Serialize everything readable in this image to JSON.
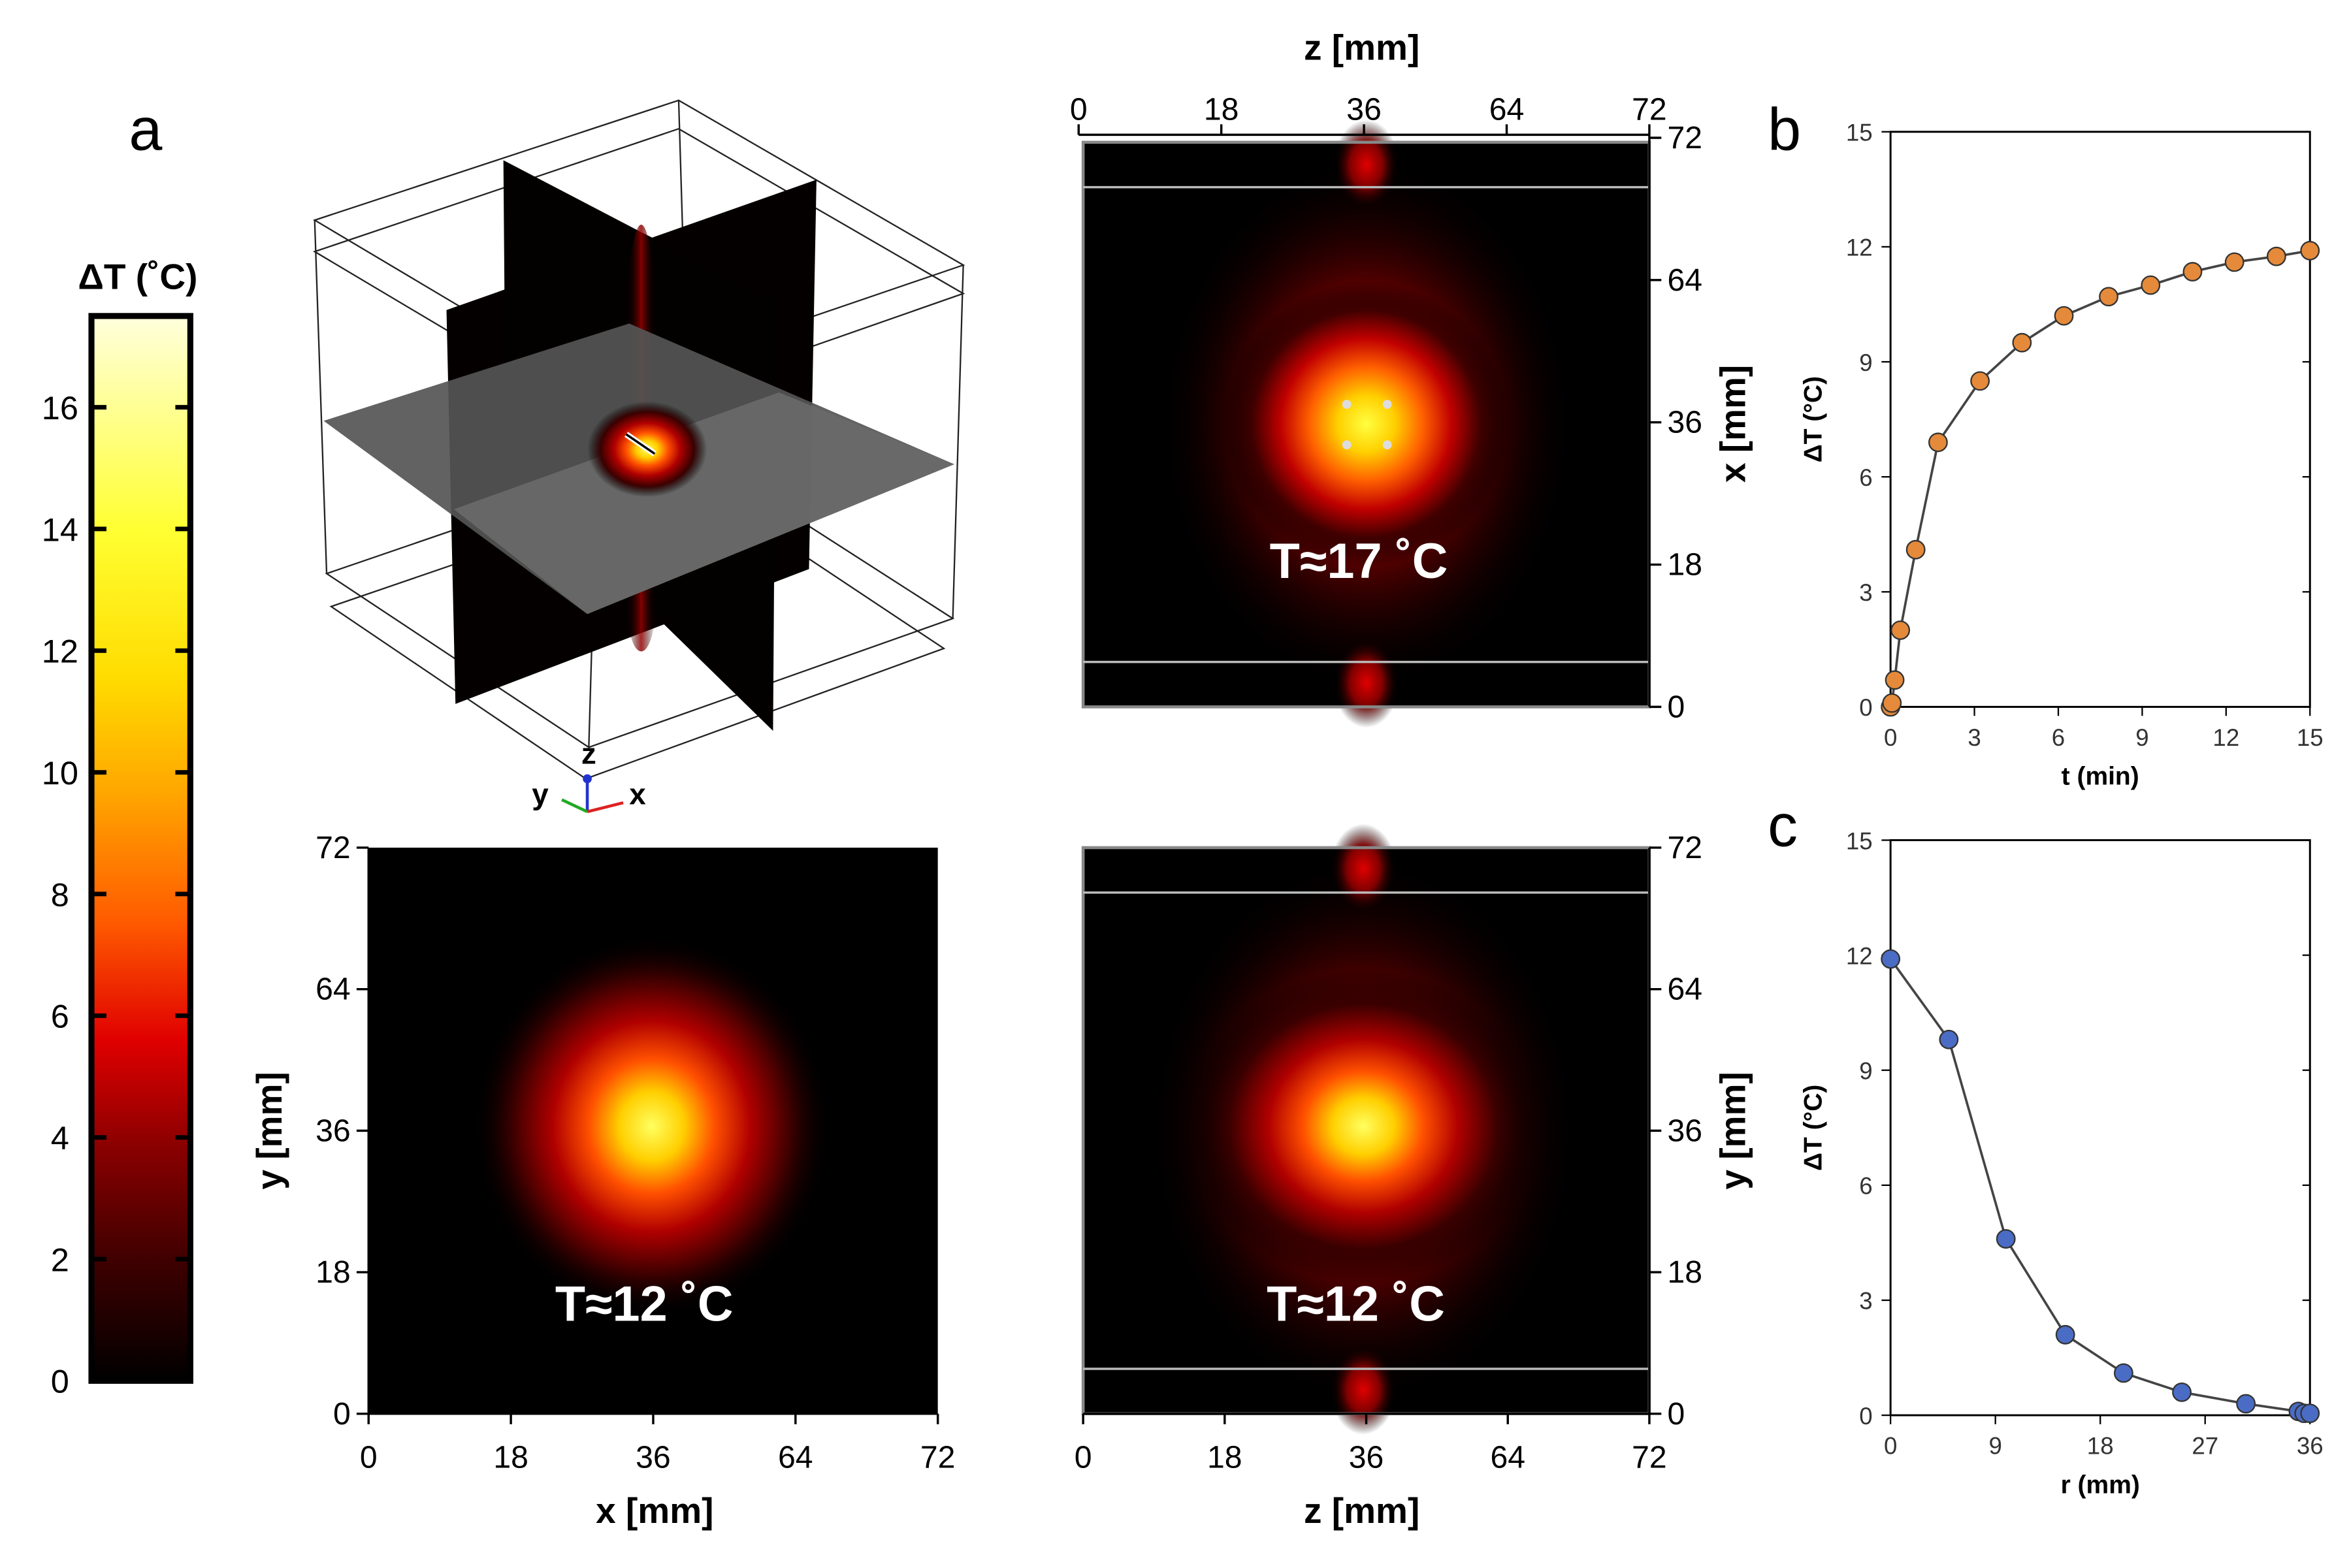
{
  "figure": {
    "panel_labels": {
      "a": "a",
      "b": "b",
      "c": "c"
    },
    "colorbar": {
      "title": "ΔT (˚C)",
      "ticks": [
        "0",
        "2",
        "4",
        "6",
        "8",
        "10",
        "12",
        "14",
        "16"
      ],
      "range": [
        0,
        17.5
      ],
      "colors": [
        "#000000",
        "#3d0000",
        "#8a0000",
        "#e00000",
        "#ff5a00",
        "#ffa500",
        "#ffdc00",
        "#ffff33",
        "#ffffdd"
      ]
    },
    "axes_3d": {
      "z": "z",
      "y": "y",
      "x": "x"
    },
    "heatmaps": {
      "top_right": {
        "xlabel": "z [mm]",
        "ylabel": "x [mm]",
        "xticks": [
          "0",
          "18",
          "36",
          "64",
          "72"
        ],
        "yticks": [
          "0",
          "18",
          "36",
          "64",
          "72"
        ],
        "annotation": "T≈17 ˚C"
      },
      "bottom_left": {
        "xlabel": "x [mm]",
        "ylabel": "y [mm]",
        "xticks": [
          "0",
          "18",
          "36",
          "64",
          "72"
        ],
        "yticks": [
          "0",
          "18",
          "36",
          "64",
          "72"
        ],
        "annotation": "T≈12 ˚C"
      },
      "bottom_right": {
        "xlabel": "z [mm]",
        "ylabel": "y [mm]",
        "xticks": [
          "0",
          "18",
          "36",
          "64",
          "72"
        ],
        "yticks": [
          "0",
          "18",
          "36",
          "64",
          "72"
        ],
        "annotation": "T≈12 ˚C"
      }
    }
  },
  "chart_data": [
    {
      "id": "b",
      "type": "line",
      "title": "",
      "xlabel": "t (min)",
      "ylabel": "ΔT (°C)",
      "xlim": [
        0,
        15
      ],
      "ylim": [
        0,
        15
      ],
      "xticks": [
        0,
        3,
        6,
        9,
        12,
        15
      ],
      "yticks": [
        0,
        3,
        6,
        9,
        12,
        15
      ],
      "marker_color": "#e58a3a",
      "series": [
        {
          "name": "ΔT",
          "x": [
            0,
            0.05,
            0.15,
            0.35,
            0.9,
            1.7,
            3.2,
            4.7,
            6.2,
            7.8,
            9.3,
            10.8,
            12.3,
            13.8,
            15
          ],
          "values": [
            0,
            0.1,
            0.7,
            2.0,
            4.1,
            6.9,
            8.5,
            9.5,
            10.2,
            10.7,
            11.0,
            11.35,
            11.6,
            11.75,
            11.9
          ]
        }
      ]
    },
    {
      "id": "c",
      "type": "line",
      "title": "",
      "xlabel": "r (mm)",
      "ylabel": "ΔT (°C)",
      "xlim": [
        0,
        36
      ],
      "ylim": [
        0,
        15
      ],
      "xticks": [
        0,
        9,
        18,
        27,
        36
      ],
      "yticks": [
        0,
        3,
        6,
        9,
        12,
        15
      ],
      "marker_color": "#4a6cc4",
      "series": [
        {
          "name": "ΔT",
          "x": [
            0,
            5.0,
            9.9,
            15.0,
            20.0,
            25.0,
            30.5,
            35.0,
            35.5,
            36
          ],
          "values": [
            11.9,
            9.8,
            4.6,
            2.1,
            1.1,
            0.6,
            0.3,
            0.1,
            0.05,
            0.05
          ]
        }
      ]
    }
  ]
}
